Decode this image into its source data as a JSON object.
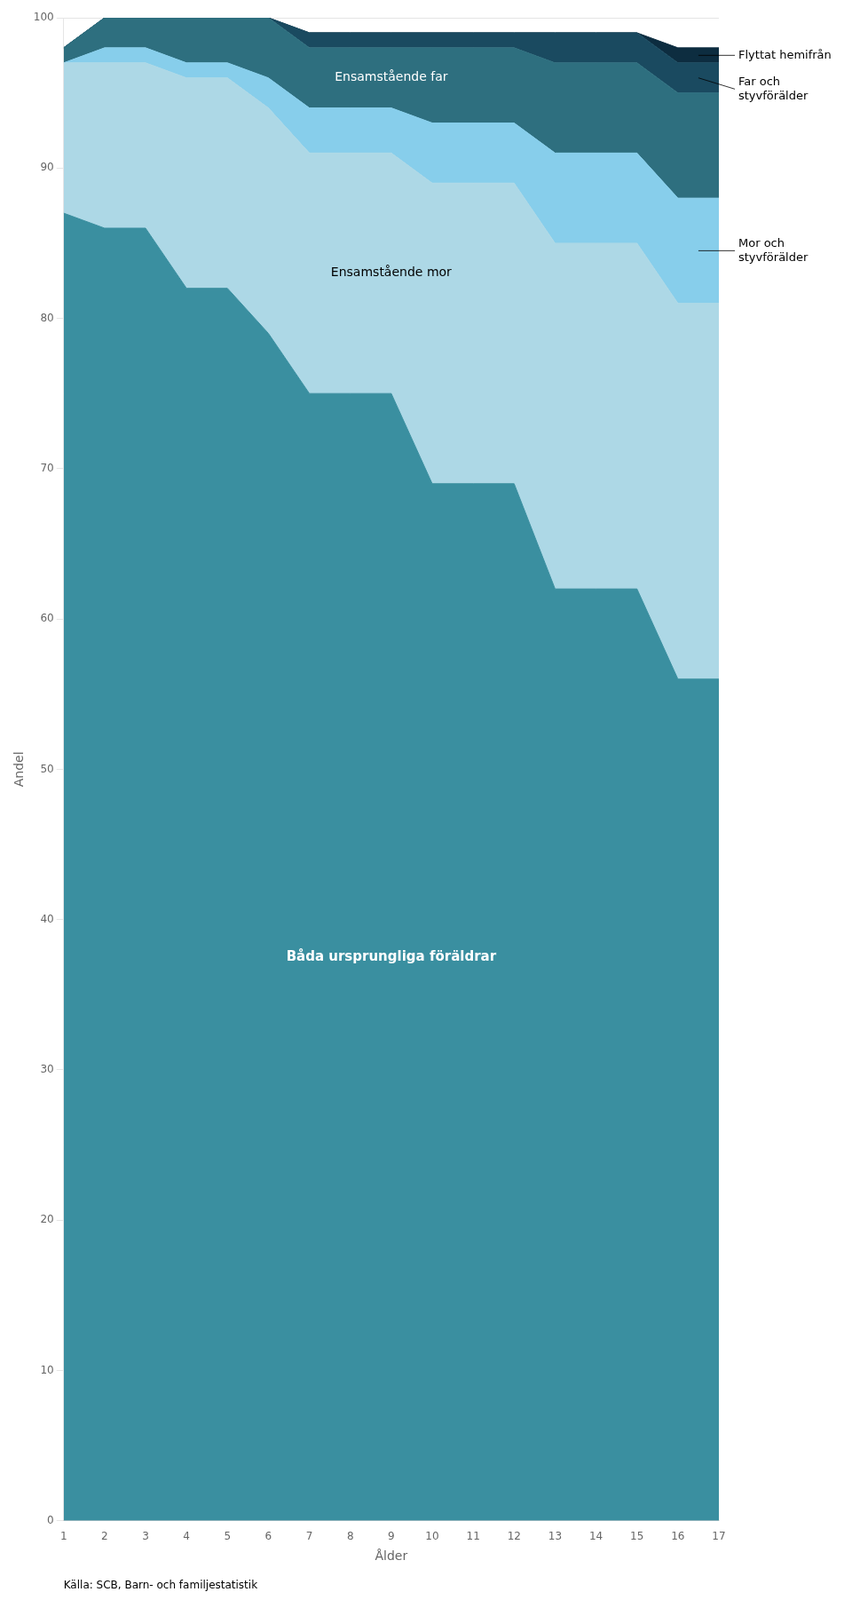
{
  "chart_data": {
    "type": "area",
    "stacked": true,
    "x_label": "Ålder",
    "y_label": "Andel",
    "annotations": [
      "Källa: SCB, Barn- och familjestatistik"
    ],
    "x": [
      1,
      2,
      3,
      4,
      5,
      6,
      7,
      8,
      9,
      10,
      11,
      12,
      13,
      14,
      15,
      16,
      17
    ],
    "series": [
      {
        "name": "Båda ursprungliga föräldrar",
        "color": "#3a8fa0",
        "values": [
          87,
          86,
          86,
          82,
          82,
          79,
          75,
          75,
          75,
          69,
          69,
          69,
          62,
          62,
          62,
          56,
          56
        ]
      },
      {
        "name": "Ensamstående mor",
        "color": "#add8e6",
        "values": [
          10,
          11,
          11,
          14,
          14,
          15,
          16,
          16,
          16,
          20,
          20,
          20,
          23,
          23,
          23,
          25,
          25
        ]
      },
      {
        "name": "Mor och\nstyvförälder",
        "color": "#87ceeb",
        "values": [
          0,
          1,
          1,
          1,
          1,
          2,
          3,
          3,
          3,
          4,
          4,
          4,
          6,
          6,
          6,
          7,
          7
        ]
      },
      {
        "name": "Ensamstående far",
        "color": "#2e6f7f",
        "values": [
          1,
          2,
          2,
          3,
          3,
          4,
          4,
          4,
          4,
          5,
          5,
          5,
          6,
          6,
          6,
          7,
          7
        ]
      },
      {
        "name": "Far och\nstyvförälder",
        "color": "#1a4a60",
        "values": [
          0,
          0,
          0,
          0,
          0,
          0,
          1,
          1,
          1,
          1,
          1,
          1,
          2,
          2,
          2,
          2,
          2
        ]
      },
      {
        "name": "Flyttat hemifrån",
        "color": "#0d2d40",
        "values": [
          0,
          0,
          0,
          0,
          0,
          0,
          0,
          0,
          0,
          0,
          0,
          0,
          0,
          0,
          0,
          1,
          1
        ]
      }
    ],
    "xlim": [
      1,
      17
    ],
    "xticks": [
      1,
      2,
      3,
      4,
      5,
      6,
      7,
      8,
      9,
      10,
      11,
      12,
      13,
      14,
      15,
      16,
      17
    ],
    "ylim": [
      0,
      100
    ],
    "yticks": [
      0,
      10,
      20,
      30,
      40,
      50,
      60,
      70,
      80,
      90,
      100
    ],
    "grid": "y"
  }
}
